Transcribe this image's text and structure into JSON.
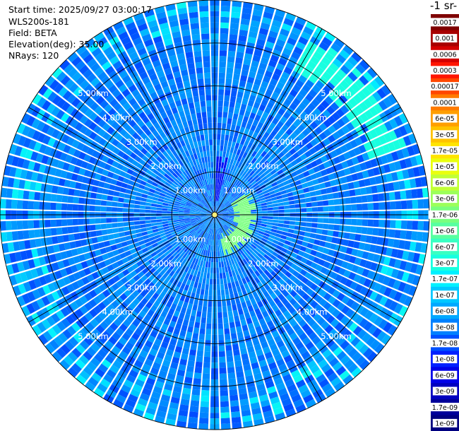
{
  "header": {
    "start_time": "Start time: 2025/09/27 03:00:17",
    "instrument": "WLS200s-181",
    "field": "Field: BETA",
    "elevation": "Elevation(deg): 35.00",
    "nrays": "NRays: 120"
  },
  "colorbar": {
    "title": "-1 sr-",
    "labels": [
      "0.0017",
      "0.001",
      "0.0006",
      "0.0003",
      "0.00017",
      "0.0001",
      "6e-05",
      "3e-05",
      "1.7e-05",
      "1e-05",
      "6e-06",
      "3e-06",
      "1.7e-06",
      "1e-06",
      "6e-07",
      "3e-07",
      "1.7e-07",
      "1e-07",
      "6e-08",
      "3e-08",
      "1.7e-08",
      "1e-08",
      "6e-09",
      "3e-09",
      "1.7e-09",
      "1e-09"
    ],
    "colors": [
      "#7f0000",
      "#a80000",
      "#d40000",
      "#ff1500",
      "#ff4800",
      "#ff7b00",
      "#ff9f00",
      "#ffc300",
      "#ffe400",
      "#e9ff0e",
      "#c1ff36",
      "#9cff5a",
      "#79ff7e",
      "#58ffa0",
      "#39ffc2",
      "#18ffe0",
      "#00f0ff",
      "#00c8ff",
      "#00a8ff",
      "#0080ff",
      "#0050ff",
      "#0020ff",
      "#0000e8",
      "#0000c0",
      "#00009a",
      "#000080"
    ]
  },
  "chart_data": {
    "type": "heatmap",
    "projection": "polar PPI",
    "field": "BETA",
    "range_ring_labels": [
      "1.00km",
      "2.00km",
      "3.00km",
      "4.00km",
      "5.00km"
    ],
    "range_rings_km": [
      1,
      2,
      3,
      4,
      5
    ],
    "max_range_km": 5.0,
    "n_rays": 120,
    "elevation_deg": 35.0,
    "color_scale": "log",
    "value_range": [
      1e-09,
      0.0017
    ],
    "dominant_value": 3e-08,
    "features": [
      {
        "name": "north-inner-streak",
        "azimuth_deg": [
          3,
          12
        ],
        "range_km": [
          0.1,
          1.4
        ],
        "value": 8e-09
      },
      {
        "name": "inner-east-arc",
        "azimuth_deg": [
          55,
          165
        ],
        "range_km": [
          0.45,
          0.95
        ],
        "value": 1.7e-06
      },
      {
        "name": "outer-ne-arc",
        "azimuth_deg": [
          28,
          70
        ],
        "range_km": [
          3.8,
          4.7
        ],
        "value": 3e-07
      }
    ]
  }
}
